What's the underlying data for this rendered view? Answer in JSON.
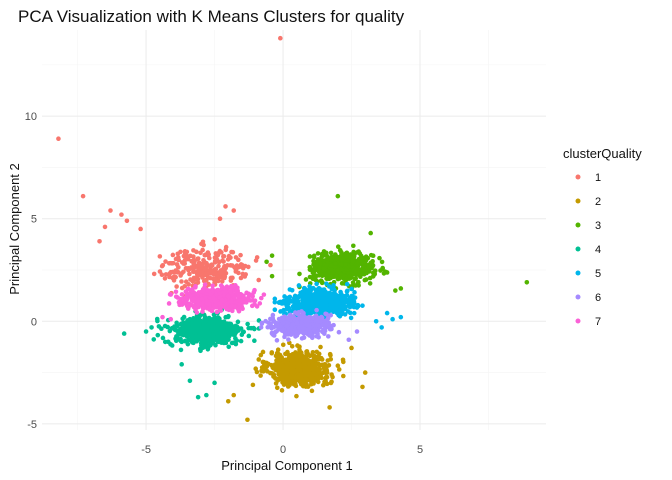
{
  "chart_data": {
    "type": "scatter",
    "title": "PCA Visualization with K Means Clusters for quality",
    "xlabel": "Principal Component 1",
    "ylabel": "Principal Component 2",
    "xlim": [
      -8.8,
      9.6
    ],
    "ylim": [
      -5.3,
      14.2
    ],
    "x_ticks": [
      -5,
      0,
      5
    ],
    "y_ticks": [
      -5,
      0,
      5,
      10
    ],
    "x_minor": [
      -7.5,
      -2.5,
      2.5,
      7.5
    ],
    "y_minor": [
      -2.5,
      2.5,
      7.5,
      12.5
    ],
    "grid": true,
    "legend": {
      "title": "clusterQuality",
      "position": "right",
      "labels": [
        "1",
        "2",
        "3",
        "4",
        "5",
        "6",
        "7"
      ]
    },
    "series": [
      {
        "name": "1",
        "color": "#F8766D",
        "cluster": {
          "center": [
            -2.8,
            2.6
          ],
          "spread": [
            1.5,
            0.9
          ],
          "count": 260
        },
        "outliers": [
          [
            -8.2,
            8.9
          ],
          [
            -7.3,
            6.1
          ],
          [
            -6.3,
            5.4
          ],
          [
            -5.9,
            5.2
          ],
          [
            -5.7,
            4.9
          ],
          [
            -6.5,
            4.6
          ],
          [
            -5.2,
            4.5
          ],
          [
            -6.7,
            3.9
          ],
          [
            -2.1,
            5.6
          ],
          [
            -1.8,
            5.4
          ],
          [
            -2.3,
            5.0
          ],
          [
            -0.1,
            13.8
          ]
        ]
      },
      {
        "name": "2",
        "color": "#C49A00",
        "cluster": {
          "center": [
            0.6,
            -2.3
          ],
          "spread": [
            1.0,
            0.75
          ],
          "count": 650
        },
        "outliers": [
          [
            -1.3,
            -4.8
          ],
          [
            -2.0,
            -3.9
          ],
          [
            -1.8,
            -3.6
          ],
          [
            -1.1,
            -3.1
          ],
          [
            1.7,
            -4.2
          ],
          [
            2.9,
            -3.2
          ],
          [
            3.0,
            -2.5
          ],
          [
            2.5,
            -1.3
          ]
        ]
      },
      {
        "name": "3",
        "color": "#53B400",
        "cluster": {
          "center": [
            2.2,
            2.6
          ],
          "spread": [
            1.0,
            0.6
          ],
          "count": 600
        },
        "outliers": [
          [
            2.0,
            6.1
          ],
          [
            8.9,
            1.9
          ],
          [
            4.3,
            1.6
          ],
          [
            4.1,
            1.5
          ],
          [
            -0.4,
            3.2
          ],
          [
            -0.6,
            2.9
          ],
          [
            -0.4,
            2.2
          ],
          [
            3.2,
            4.3
          ]
        ]
      },
      {
        "name": "4",
        "color": "#00C094",
        "cluster": {
          "center": [
            -2.8,
            -0.5
          ],
          "spread": [
            1.2,
            0.7
          ],
          "count": 520
        },
        "outliers": [
          [
            -5.8,
            -0.6
          ],
          [
            -5.0,
            -0.5
          ],
          [
            -4.8,
            -0.3
          ],
          [
            -3.1,
            -3.7
          ],
          [
            -2.8,
            -3.6
          ],
          [
            -2.5,
            -3.0
          ],
          [
            -3.7,
            -2.1
          ],
          [
            -3.4,
            -2.9
          ]
        ]
      },
      {
        "name": "5",
        "color": "#00B6EB",
        "cluster": {
          "center": [
            1.3,
            0.9
          ],
          "spread": [
            1.0,
            0.6
          ],
          "count": 700
        },
        "outliers": [
          [
            4.3,
            0.2
          ],
          [
            3.8,
            0.4
          ],
          [
            3.4,
            0.0
          ],
          [
            3.6,
            -0.3
          ],
          [
            4.0,
            0.1
          ]
        ]
      },
      {
        "name": "6",
        "color": "#A58AFF",
        "cluster": {
          "center": [
            0.6,
            -0.2
          ],
          "spread": [
            0.9,
            0.45
          ],
          "count": 500
        },
        "outliers": [
          [
            2.7,
            -0.5
          ],
          [
            2.4,
            -0.9
          ],
          [
            -0.8,
            -0.3
          ]
        ]
      },
      {
        "name": "7",
        "color": "#FB61D7",
        "cluster": {
          "center": [
            -2.4,
            1.1
          ],
          "spread": [
            1.1,
            0.45
          ],
          "count": 520
        },
        "outliers": [
          [
            -4.1,
            0.1
          ],
          [
            -4.4,
            0.2
          ],
          [
            -3.9,
            1.2
          ],
          [
            -0.7,
            1.3
          ]
        ]
      }
    ]
  }
}
